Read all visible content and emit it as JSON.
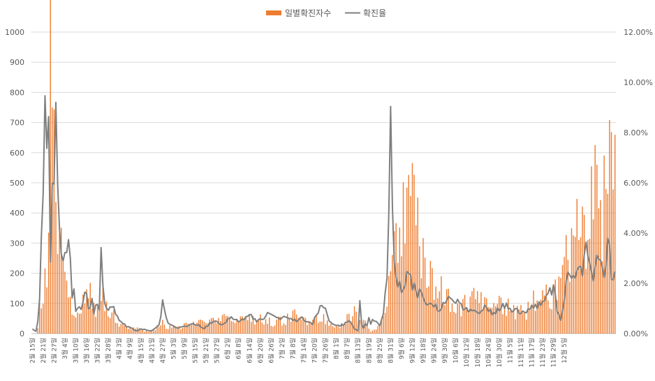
{
  "chart_data": {
    "type": "bar+line",
    "legend": [
      {
        "name": "일별확진자수",
        "kind": "bar",
        "color": "#ED7D31"
      },
      {
        "name": "확진율",
        "kind": "line",
        "color": "#7F7F7F"
      }
    ],
    "legend_placement": "top-center",
    "y_left": {
      "min": 0,
      "max": 1000,
      "step": 100,
      "ticks": [
        "0",
        "100",
        "200",
        "300",
        "400",
        "500",
        "600",
        "700",
        "800",
        "900",
        "1000"
      ]
    },
    "y_right": {
      "min": 0,
      "max": 0.12,
      "step": 0.02,
      "ticks": [
        "0.00%",
        "2.00%",
        "4.00%",
        "6.00%",
        "8.00%",
        "10.00%",
        "12.00%"
      ]
    },
    "grid": true,
    "x_labels": [
      "2월 15일",
      "2월 21일",
      "2월 27일",
      "3월 4일",
      "3월 10일",
      "3월 16일",
      "3월 22일",
      "3월 28일",
      "4월 3일",
      "4월 9일",
      "4월 15일",
      "4월 21일",
      "4월 27일",
      "5월 3일",
      "5월 9일",
      "5월 15일",
      "5월 21일",
      "5월 27일",
      "6월 2일",
      "6월 8일",
      "6월 14일",
      "6월 20일",
      "6월 26일",
      "7월 2일",
      "7월 8일",
      "7월 14일",
      "7월 20일",
      "7월 26일",
      "8월 1일",
      "8월 7일",
      "8월 13일",
      "8월 19일",
      "8월 25일",
      "8월 31일",
      "9월 6일",
      "9월 12일",
      "9월 18일",
      "9월 24일",
      "9월 30일",
      "10월 6일",
      "10월 12일",
      "10월 18일",
      "10월 24일",
      "10월 30일",
      "11월 5일",
      "11월 11일",
      "11월 17일",
      "11월 23일",
      "11월 29일",
      "12월 5일"
    ],
    "anchors": {
      "cases_x": [
        0,
        2,
        3,
        4,
        5,
        6,
        7,
        8,
        9,
        10,
        11,
        12,
        13,
        14,
        15,
        16,
        17,
        18,
        19,
        20,
        21,
        22,
        23,
        24,
        26,
        28,
        30,
        32,
        34,
        36,
        38,
        40,
        42,
        44,
        46,
        48,
        50,
        55,
        60,
        62,
        65,
        68,
        70,
        72,
        75,
        80,
        85,
        90,
        95,
        100,
        105,
        110,
        115,
        120,
        125,
        130,
        135,
        140,
        145,
        150,
        155,
        160,
        165,
        170,
        175,
        178,
        180,
        185,
        186,
        187,
        188,
        190,
        191,
        192,
        195,
        200,
        205,
        210,
        215,
        220,
        225,
        230,
        235,
        240,
        245,
        250,
        255,
        260,
        265,
        270,
        275,
        280,
        285,
        290,
        292,
        295,
        298,
        300,
        302,
        304,
        306,
        308,
        310,
        312,
        314,
        315,
        317,
        319,
        321,
        322
      ],
      "cases_y": [
        0,
        0,
        20,
        80,
        90,
        130,
        200,
        250,
        420,
        910,
        700,
        600,
        520,
        430,
        480,
        360,
        300,
        260,
        240,
        160,
        120,
        100,
        90,
        80,
        90,
        100,
        120,
        140,
        90,
        110,
        140,
        100,
        80,
        70,
        60,
        40,
        30,
        20,
        15,
        10,
        10,
        12,
        30,
        35,
        20,
        20,
        30,
        30,
        45,
        40,
        50,
        55,
        50,
        50,
        50,
        40,
        40,
        50,
        60,
        50,
        50,
        55,
        40,
        30,
        60,
        80,
        40,
        30,
        20,
        10,
        8,
        15,
        25,
        40,
        100,
        280,
        400,
        440,
        300,
        200,
        150,
        130,
        100,
        100,
        120,
        90,
        110,
        100,
        80,
        70,
        90,
        130,
        120,
        150,
        200,
        250,
        300,
        330,
        380,
        400,
        340,
        320,
        580,
        500,
        450,
        420,
        500,
        540,
        620,
        580
      ],
      "rate_x": [
        0,
        2,
        3,
        4,
        5,
        6,
        7,
        8,
        9,
        10,
        11,
        12,
        13,
        14,
        15,
        16,
        17,
        18,
        19,
        20,
        21,
        22,
        23,
        24,
        25,
        26,
        27,
        28,
        29,
        30,
        31,
        32,
        33,
        34,
        35,
        36,
        37,
        38,
        40,
        42,
        44,
        46,
        48,
        50,
        52,
        55,
        58,
        60,
        62,
        65,
        68,
        70,
        72,
        75,
        80,
        85,
        90,
        95,
        100,
        105,
        110,
        115,
        120,
        125,
        130,
        135,
        140,
        145,
        150,
        155,
        160,
        165,
        170,
        175,
        178,
        180,
        181,
        182,
        183,
        184,
        185,
        186,
        187,
        188,
        190,
        191,
        192,
        193,
        194,
        195,
        196,
        197,
        198,
        199,
        200,
        202,
        205,
        208,
        210,
        212,
        215,
        220,
        225,
        230,
        235,
        240,
        245,
        250,
        255,
        260,
        265,
        270,
        275,
        280,
        285,
        288,
        290,
        292,
        295,
        298,
        300,
        302,
        304,
        306,
        308,
        310,
        312,
        314,
        316,
        318,
        320,
        322
      ],
      "rate_y": [
        0.002,
        0.001,
        0.005,
        0.012,
        0.04,
        0.054,
        0.096,
        0.066,
        0.077,
        0.03,
        0.06,
        0.058,
        0.103,
        0.065,
        0.042,
        0.035,
        0.028,
        0.03,
        0.03,
        0.035,
        0.028,
        0.015,
        0.02,
        0.008,
        0.009,
        0.01,
        0.01,
        0.012,
        0.015,
        0.017,
        0.01,
        0.012,
        0.015,
        0.008,
        0.01,
        0.012,
        0.01,
        0.03,
        0.012,
        0.01,
        0.012,
        0.008,
        0.006,
        0.004,
        0.003,
        0.002,
        0.001,
        0.002,
        0.0015,
        0.001,
        0.002,
        0.003,
        0.012,
        0.004,
        0.002,
        0.003,
        0.004,
        0.002,
        0.005,
        0.004,
        0.006,
        0.005,
        0.007,
        0.005,
        0.008,
        0.006,
        0.007,
        0.005,
        0.006,
        0.004,
        0.012,
        0.004,
        0.003,
        0.005,
        0.002,
        0.001,
        0.014,
        0.004,
        0.002,
        0.004,
        0.003,
        0.006,
        0.004,
        0.005,
        0.005,
        0.004,
        0.003,
        0.006,
        0.009,
        0.016,
        0.02,
        0.05,
        0.082,
        0.05,
        0.025,
        0.02,
        0.018,
        0.025,
        0.02,
        0.017,
        0.015,
        0.012,
        0.01,
        0.014,
        0.012,
        0.009,
        0.008,
        0.01,
        0.008,
        0.012,
        0.01,
        0.008,
        0.01,
        0.012,
        0.015,
        0.018,
        0.01,
        0.005,
        0.02,
        0.024,
        0.025,
        0.03,
        0.022,
        0.035,
        0.025,
        0.02,
        0.028,
        0.03,
        0.022,
        0.04,
        0.022,
        0.022,
        0.028
      ]
    }
  }
}
